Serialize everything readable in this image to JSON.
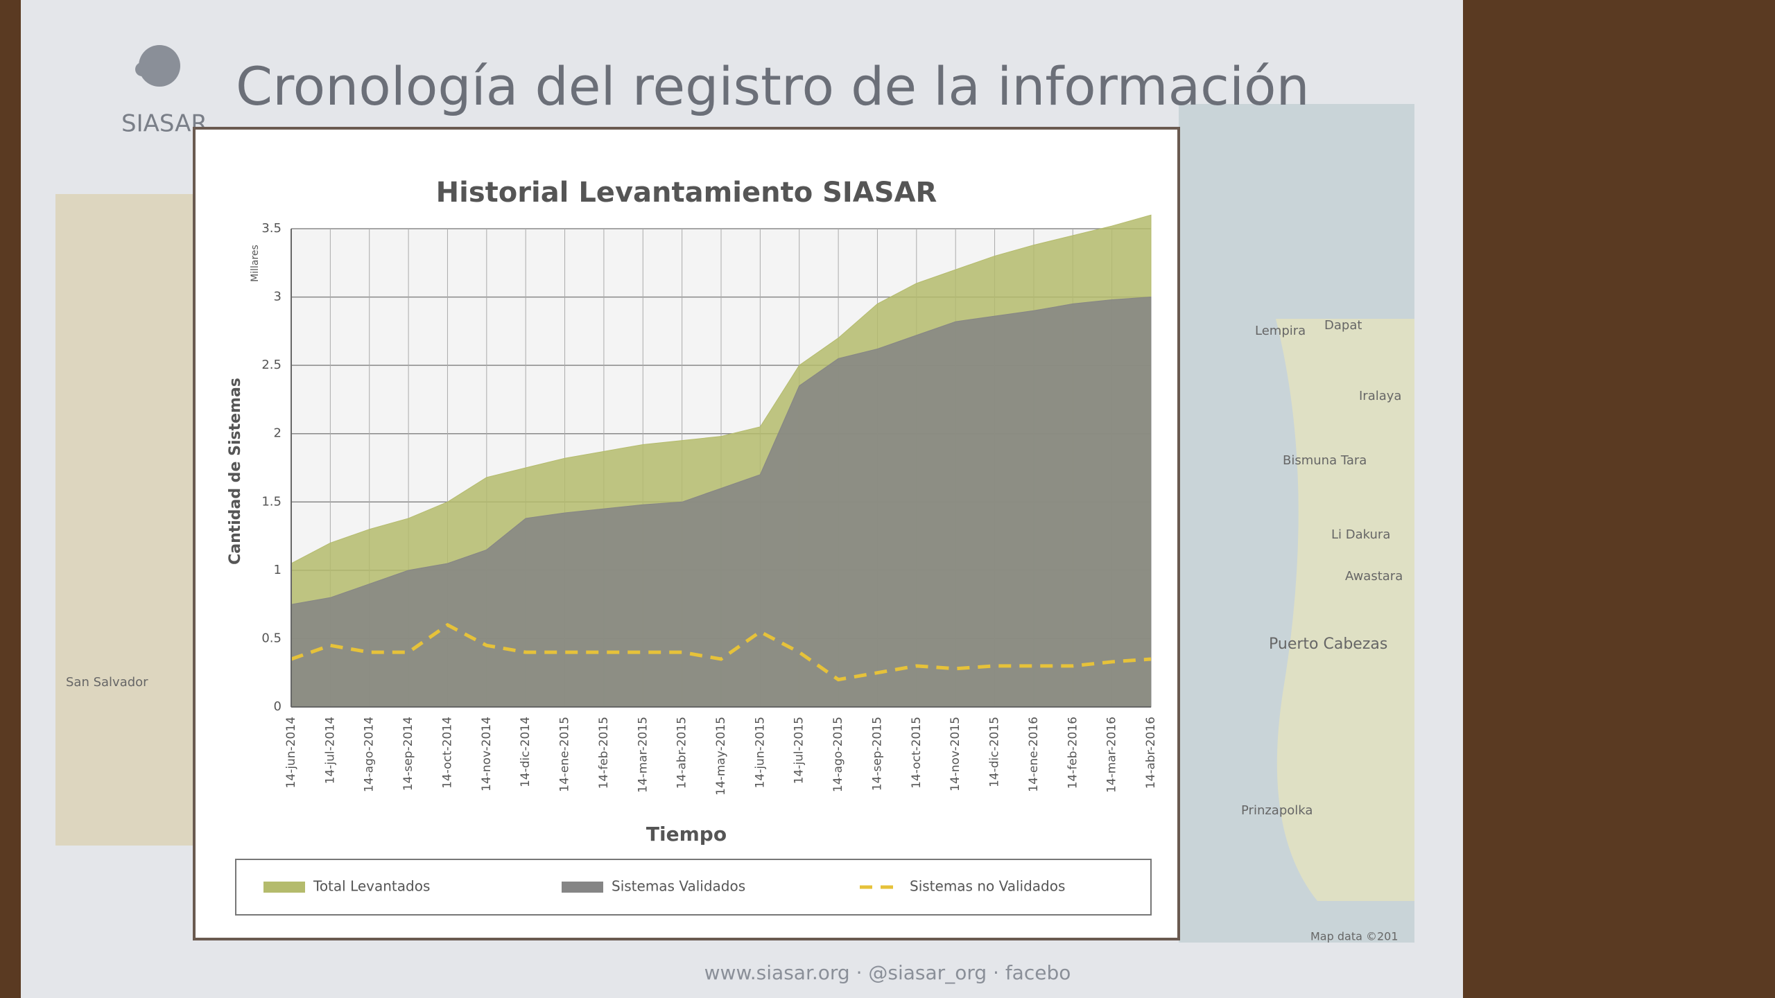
{
  "slide": {
    "logo": "SIASAR",
    "title": "Cronología del registro de la información",
    "footer": "www.siasar.org · @siasar_org · facebo",
    "map_labels": [
      "Lempira",
      "Dapat",
      "Iralaya",
      "Bismuna Tara",
      "Li Dakura",
      "Awastara",
      "Puerto Cabezas",
      "Prinzapolka",
      "San Salvador",
      "Map data ©201"
    ]
  },
  "chart_data": {
    "type": "area",
    "title": "Historial Levantamiento SIASAR",
    "x_label": "Tiempo",
    "y_label": "Cantidad de Sistemas",
    "y_unit": "Millares",
    "categories": [
      "14-jun-2014",
      "14-jul-2014",
      "14-ago-2014",
      "14-sep-2014",
      "14-oct-2014",
      "14-nov-2014",
      "14-dic-2014",
      "14-ene-2015",
      "14-feb-2015",
      "14-mar-2015",
      "14-abr-2015",
      "14-may-2015",
      "14-jun-2015",
      "14-jul-2015",
      "14-ago-2015",
      "14-sep-2015",
      "14-oct-2015",
      "14-nov-2015",
      "14-dic-2015",
      "14-ene-2016",
      "14-feb-2016",
      "14-mar-2016",
      "14-abr-2016"
    ],
    "series": [
      {
        "name": "Total Levantados",
        "color": "#b4bb6c",
        "style": "area",
        "values": [
          1.05,
          1.2,
          1.3,
          1.38,
          1.5,
          1.68,
          1.75,
          1.82,
          1.87,
          1.92,
          1.95,
          1.98,
          2.05,
          2.5,
          2.7,
          2.95,
          3.1,
          3.2,
          3.3,
          3.38,
          3.45,
          3.52,
          3.6
        ]
      },
      {
        "name": "Sistemas Validados",
        "color": "#858585",
        "style": "area",
        "values": [
          0.75,
          0.8,
          0.9,
          1.0,
          1.05,
          1.15,
          1.38,
          1.42,
          1.45,
          1.48,
          1.5,
          1.6,
          1.7,
          2.35,
          2.55,
          2.62,
          2.72,
          2.82,
          2.86,
          2.9,
          2.95,
          2.98,
          3.0
        ]
      },
      {
        "name": "Sistemas no Validados",
        "color": "#e6c23a",
        "style": "dashed-line",
        "values": [
          0.35,
          0.45,
          0.4,
          0.4,
          0.6,
          0.45,
          0.4,
          0.4,
          0.4,
          0.4,
          0.4,
          0.35,
          0.55,
          0.4,
          0.2,
          0.25,
          0.3,
          0.28,
          0.3,
          0.3,
          0.3,
          0.33,
          0.35
        ]
      }
    ],
    "ylim": [
      0,
      3.5
    ],
    "yticks": [
      0,
      0.5,
      1,
      1.5,
      2,
      2.5,
      3,
      3.5
    ],
    "grid": true,
    "legend": "bottom"
  }
}
